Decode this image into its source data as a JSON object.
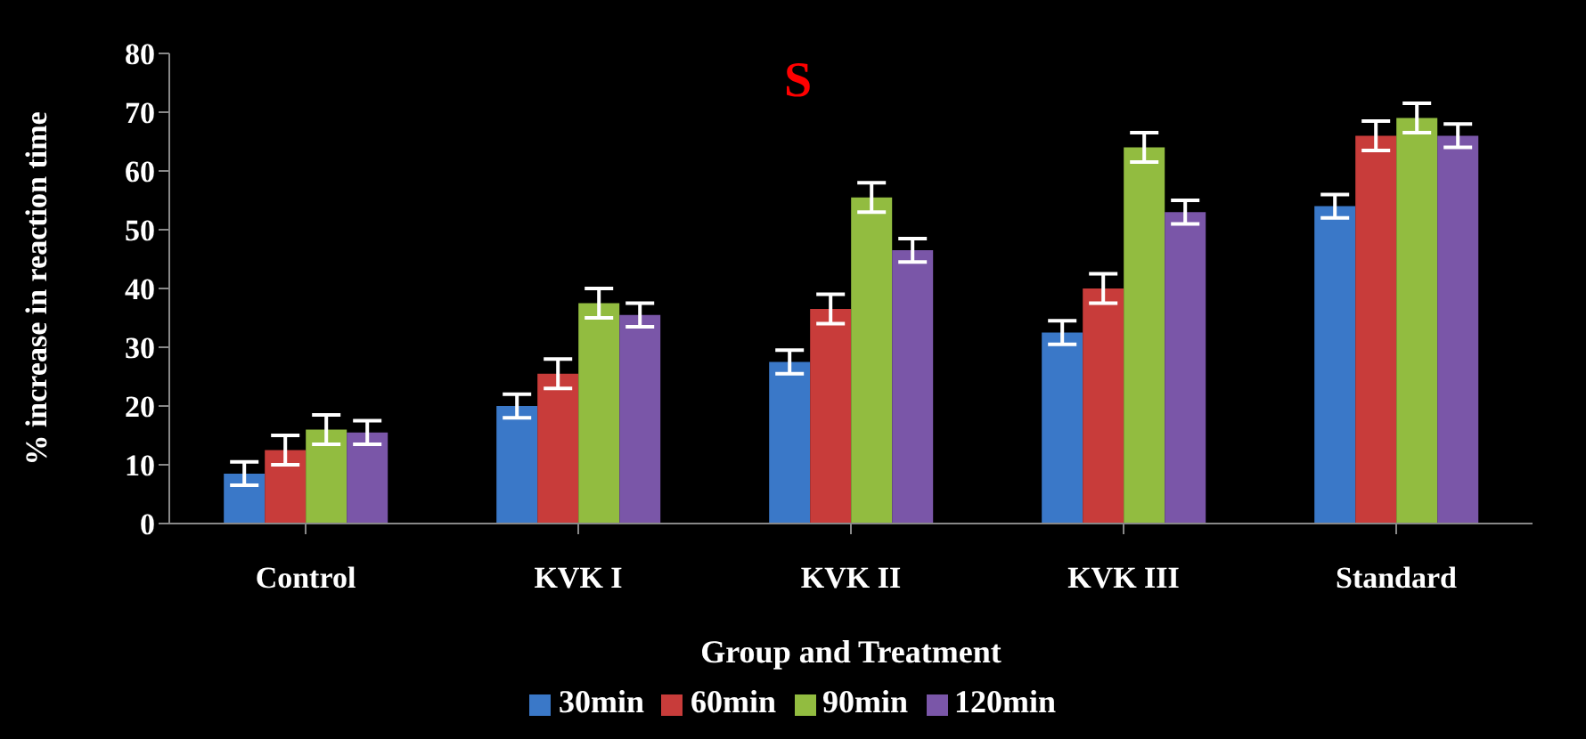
{
  "chart_data": {
    "type": "bar",
    "title": "S",
    "xlabel": "Group and Treatment",
    "ylabel": "% increase in reaction time",
    "categories": [
      "Control",
      "KVK I",
      "KVK II",
      "KVK III",
      "Standard"
    ],
    "series": [
      {
        "name": "30min",
        "color": "#3a78c8",
        "values": [
          8.5,
          20,
          27.5,
          32.5,
          54
        ],
        "errors": [
          2,
          2,
          2,
          2,
          2
        ]
      },
      {
        "name": "60min",
        "color": "#c83c3a",
        "values": [
          12.5,
          25.5,
          36.5,
          40,
          66
        ],
        "errors": [
          2.5,
          2.5,
          2.5,
          2.5,
          2.5
        ]
      },
      {
        "name": "90min",
        "color": "#92bc40",
        "values": [
          16,
          37.5,
          55.5,
          64,
          69
        ],
        "errors": [
          2.5,
          2.5,
          2.5,
          2.5,
          2.5
        ]
      },
      {
        "name": "120min",
        "color": "#7a56a8",
        "values": [
          15.5,
          35.5,
          46.5,
          53,
          66
        ],
        "errors": [
          2,
          2,
          2,
          2,
          2
        ]
      }
    ],
    "ylim": [
      0,
      80
    ],
    "yticks": [
      0,
      10,
      20,
      30,
      40,
      50,
      60,
      70,
      80
    ],
    "grid": false,
    "legend": "bottom"
  }
}
